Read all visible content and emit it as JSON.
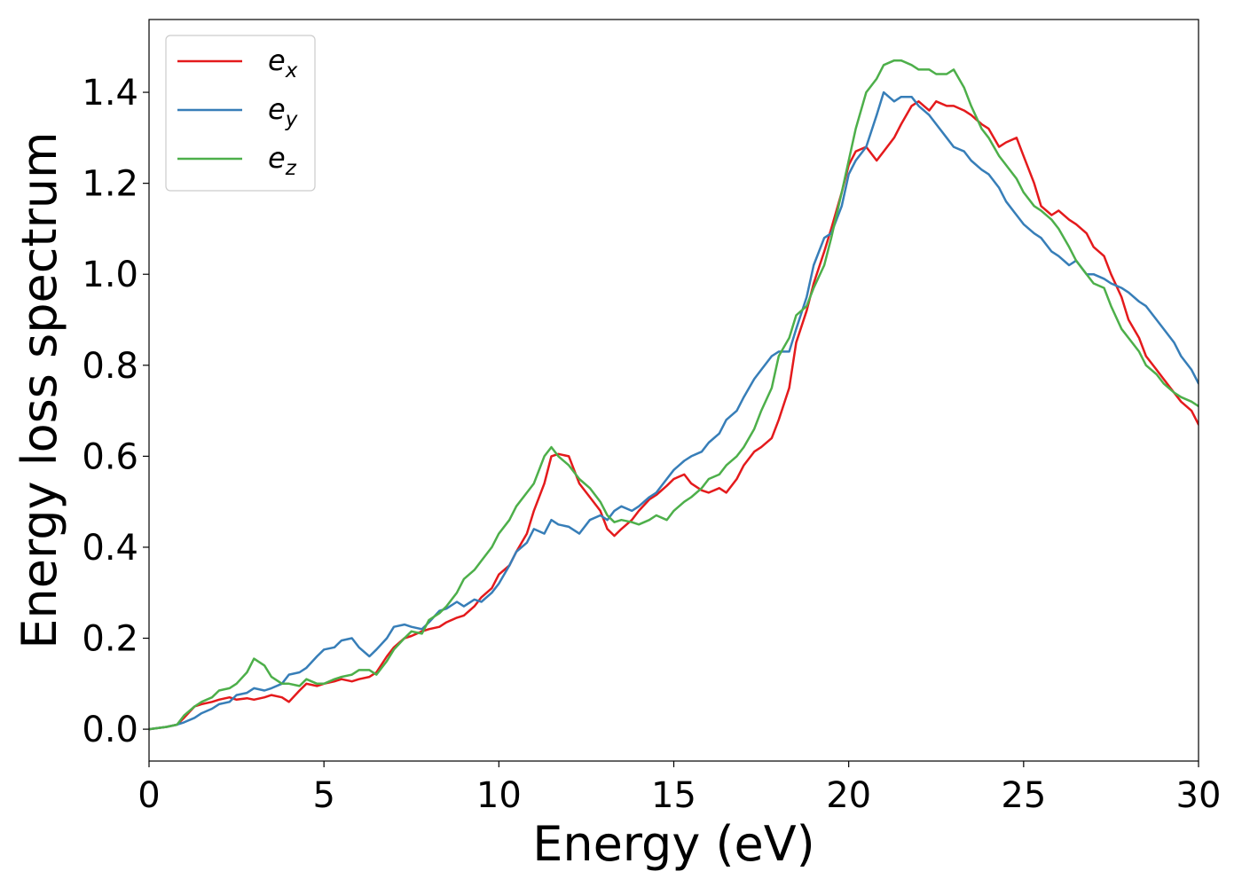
{
  "chart_data": {
    "type": "line",
    "title": "",
    "xlabel": "Energy (eV)",
    "ylabel": "Energy loss spectrum",
    "xlim": [
      0,
      30
    ],
    "ylim": [
      -0.07,
      1.56
    ],
    "xticks": [
      0,
      5,
      10,
      15,
      20,
      25,
      30
    ],
    "xtick_labels": [
      "0",
      "5",
      "10",
      "15",
      "20",
      "25",
      "30"
    ],
    "yticks": [
      0.0,
      0.2,
      0.4,
      0.6,
      0.8,
      1.0,
      1.2,
      1.4
    ],
    "ytick_labels": [
      "0.0",
      "0.2",
      "0.4",
      "0.6",
      "0.8",
      "1.0",
      "1.2",
      "1.4"
    ],
    "grid": false,
    "legend_position": "top-left",
    "series": [
      {
        "name": "e_x",
        "legend_base": "e",
        "legend_sub": "x",
        "color": "#e41a1c",
        "x": [
          0,
          0.5,
          0.8,
          1.0,
          1.3,
          1.5,
          1.8,
          2.0,
          2.3,
          2.5,
          2.8,
          3.0,
          3.3,
          3.5,
          3.8,
          4.0,
          4.3,
          4.5,
          4.8,
          5.0,
          5.3,
          5.5,
          5.8,
          6.0,
          6.3,
          6.5,
          6.8,
          7.0,
          7.3,
          7.5,
          7.8,
          8.0,
          8.3,
          8.5,
          8.8,
          9.0,
          9.3,
          9.5,
          9.8,
          10.0,
          10.3,
          10.5,
          10.8,
          11.0,
          11.3,
          11.5,
          11.7,
          12.0,
          12.3,
          12.6,
          12.9,
          13.1,
          13.3,
          13.5,
          13.8,
          14.0,
          14.3,
          14.5,
          14.8,
          15.0,
          15.3,
          15.5,
          15.8,
          16.0,
          16.3,
          16.5,
          16.8,
          17.0,
          17.3,
          17.5,
          17.8,
          18.0,
          18.3,
          18.5,
          18.8,
          19.0,
          19.3,
          19.5,
          19.8,
          20.0,
          20.2,
          20.5,
          20.8,
          21.0,
          21.3,
          21.5,
          21.8,
          22.0,
          22.3,
          22.5,
          22.8,
          23.0,
          23.3,
          23.5,
          23.8,
          24.0,
          24.3,
          24.5,
          24.8,
          25.0,
          25.3,
          25.5,
          25.8,
          26.0,
          26.3,
          26.5,
          26.8,
          27.0,
          27.3,
          27.5,
          27.8,
          28.0,
          28.3,
          28.5,
          28.8,
          29.0,
          29.3,
          29.5,
          29.8,
          30.0
        ],
        "y": [
          0.0,
          0.005,
          0.01,
          0.025,
          0.05,
          0.055,
          0.06,
          0.065,
          0.07,
          0.065,
          0.068,
          0.065,
          0.07,
          0.075,
          0.07,
          0.06,
          0.085,
          0.1,
          0.095,
          0.1,
          0.105,
          0.11,
          0.105,
          0.11,
          0.115,
          0.125,
          0.16,
          0.18,
          0.2,
          0.205,
          0.215,
          0.22,
          0.225,
          0.235,
          0.245,
          0.25,
          0.27,
          0.29,
          0.31,
          0.34,
          0.36,
          0.39,
          0.43,
          0.48,
          0.54,
          0.6,
          0.605,
          0.6,
          0.54,
          0.51,
          0.48,
          0.44,
          0.425,
          0.44,
          0.46,
          0.48,
          0.505,
          0.515,
          0.535,
          0.55,
          0.56,
          0.54,
          0.525,
          0.52,
          0.53,
          0.52,
          0.55,
          0.58,
          0.61,
          0.62,
          0.64,
          0.68,
          0.75,
          0.85,
          0.92,
          0.98,
          1.05,
          1.1,
          1.18,
          1.24,
          1.27,
          1.28,
          1.25,
          1.27,
          1.3,
          1.33,
          1.37,
          1.38,
          1.36,
          1.38,
          1.37,
          1.37,
          1.36,
          1.35,
          1.33,
          1.32,
          1.28,
          1.29,
          1.3,
          1.26,
          1.2,
          1.15,
          1.13,
          1.14,
          1.12,
          1.11,
          1.09,
          1.06,
          1.04,
          1.0,
          0.95,
          0.9,
          0.86,
          0.82,
          0.79,
          0.77,
          0.74,
          0.72,
          0.7,
          0.67
        ]
      },
      {
        "name": "e_y",
        "legend_base": "e",
        "legend_sub": "y",
        "color": "#377eb8",
        "x": [
          0,
          0.5,
          0.8,
          1.0,
          1.3,
          1.5,
          1.8,
          2.0,
          2.3,
          2.5,
          2.8,
          3.0,
          3.3,
          3.5,
          3.8,
          4.0,
          4.3,
          4.5,
          4.8,
          5.0,
          5.3,
          5.5,
          5.8,
          6.0,
          6.3,
          6.5,
          6.8,
          7.0,
          7.3,
          7.5,
          7.8,
          8.0,
          8.3,
          8.5,
          8.8,
          9.0,
          9.3,
          9.5,
          9.8,
          10.0,
          10.3,
          10.5,
          10.8,
          11.0,
          11.3,
          11.5,
          11.7,
          12.0,
          12.3,
          12.6,
          12.9,
          13.1,
          13.3,
          13.5,
          13.8,
          14.0,
          14.3,
          14.5,
          14.8,
          15.0,
          15.3,
          15.5,
          15.8,
          16.0,
          16.3,
          16.5,
          16.8,
          17.0,
          17.3,
          17.5,
          17.8,
          18.0,
          18.3,
          18.5,
          18.8,
          19.0,
          19.3,
          19.5,
          19.8,
          20.0,
          20.2,
          20.5,
          20.8,
          21.0,
          21.3,
          21.5,
          21.8,
          22.0,
          22.3,
          22.5,
          22.8,
          23.0,
          23.3,
          23.5,
          23.8,
          24.0,
          24.3,
          24.5,
          24.8,
          25.0,
          25.3,
          25.5,
          25.8,
          26.0,
          26.3,
          26.5,
          26.8,
          27.0,
          27.3,
          27.5,
          27.8,
          28.0,
          28.3,
          28.5,
          28.8,
          29.0,
          29.3,
          29.5,
          29.8,
          30.0
        ],
        "y": [
          0.0,
          0.005,
          0.01,
          0.015,
          0.025,
          0.035,
          0.045,
          0.055,
          0.06,
          0.075,
          0.08,
          0.09,
          0.085,
          0.09,
          0.1,
          0.12,
          0.125,
          0.135,
          0.16,
          0.175,
          0.18,
          0.195,
          0.2,
          0.18,
          0.16,
          0.175,
          0.2,
          0.225,
          0.23,
          0.225,
          0.22,
          0.235,
          0.26,
          0.265,
          0.28,
          0.27,
          0.285,
          0.28,
          0.3,
          0.32,
          0.36,
          0.39,
          0.41,
          0.44,
          0.43,
          0.46,
          0.45,
          0.445,
          0.43,
          0.46,
          0.47,
          0.46,
          0.48,
          0.49,
          0.48,
          0.49,
          0.51,
          0.52,
          0.55,
          0.57,
          0.59,
          0.6,
          0.61,
          0.63,
          0.65,
          0.68,
          0.7,
          0.73,
          0.77,
          0.79,
          0.82,
          0.83,
          0.83,
          0.88,
          0.95,
          1.02,
          1.08,
          1.09,
          1.15,
          1.22,
          1.25,
          1.28,
          1.35,
          1.4,
          1.38,
          1.39,
          1.39,
          1.37,
          1.35,
          1.33,
          1.3,
          1.28,
          1.27,
          1.25,
          1.23,
          1.22,
          1.19,
          1.16,
          1.13,
          1.11,
          1.09,
          1.08,
          1.05,
          1.04,
          1.02,
          1.03,
          1.0,
          1.0,
          0.99,
          0.98,
          0.97,
          0.96,
          0.94,
          0.93,
          0.9,
          0.88,
          0.85,
          0.82,
          0.79,
          0.76
        ]
      },
      {
        "name": "e_z",
        "legend_base": "e",
        "legend_sub": "z",
        "color": "#4daf4a",
        "x": [
          0,
          0.5,
          0.8,
          1.0,
          1.3,
          1.5,
          1.8,
          2.0,
          2.3,
          2.5,
          2.8,
          3.0,
          3.3,
          3.5,
          3.8,
          4.0,
          4.3,
          4.5,
          4.8,
          5.0,
          5.3,
          5.5,
          5.8,
          6.0,
          6.3,
          6.5,
          6.8,
          7.0,
          7.3,
          7.5,
          7.8,
          8.0,
          8.3,
          8.5,
          8.8,
          9.0,
          9.3,
          9.5,
          9.8,
          10.0,
          10.3,
          10.5,
          10.8,
          11.0,
          11.3,
          11.5,
          11.7,
          12.0,
          12.3,
          12.6,
          12.9,
          13.1,
          13.3,
          13.5,
          13.8,
          14.0,
          14.3,
          14.5,
          14.8,
          15.0,
          15.3,
          15.5,
          15.8,
          16.0,
          16.3,
          16.5,
          16.8,
          17.0,
          17.3,
          17.5,
          17.8,
          18.0,
          18.3,
          18.5,
          18.8,
          19.0,
          19.3,
          19.5,
          19.8,
          20.0,
          20.2,
          20.5,
          20.8,
          21.0,
          21.3,
          21.5,
          21.8,
          22.0,
          22.3,
          22.5,
          22.8,
          23.0,
          23.3,
          23.5,
          23.8,
          24.0,
          24.3,
          24.5,
          24.8,
          25.0,
          25.3,
          25.5,
          25.8,
          26.0,
          26.3,
          26.5,
          26.8,
          27.0,
          27.3,
          27.5,
          27.8,
          28.0,
          28.3,
          28.5,
          28.8,
          29.0,
          29.3,
          29.5,
          29.8,
          30.0
        ],
        "y": [
          0.0,
          0.005,
          0.01,
          0.03,
          0.05,
          0.06,
          0.07,
          0.085,
          0.09,
          0.1,
          0.125,
          0.155,
          0.14,
          0.115,
          0.1,
          0.1,
          0.095,
          0.11,
          0.1,
          0.1,
          0.11,
          0.115,
          0.12,
          0.13,
          0.13,
          0.12,
          0.15,
          0.175,
          0.2,
          0.215,
          0.21,
          0.24,
          0.255,
          0.27,
          0.3,
          0.33,
          0.35,
          0.37,
          0.4,
          0.43,
          0.46,
          0.49,
          0.52,
          0.54,
          0.6,
          0.62,
          0.6,
          0.58,
          0.55,
          0.53,
          0.5,
          0.47,
          0.455,
          0.46,
          0.455,
          0.45,
          0.46,
          0.47,
          0.46,
          0.48,
          0.5,
          0.51,
          0.53,
          0.55,
          0.56,
          0.58,
          0.6,
          0.62,
          0.66,
          0.7,
          0.75,
          0.82,
          0.86,
          0.91,
          0.93,
          0.97,
          1.02,
          1.08,
          1.18,
          1.25,
          1.32,
          1.4,
          1.43,
          1.46,
          1.47,
          1.47,
          1.46,
          1.45,
          1.45,
          1.44,
          1.44,
          1.45,
          1.41,
          1.37,
          1.32,
          1.3,
          1.26,
          1.24,
          1.21,
          1.18,
          1.15,
          1.14,
          1.12,
          1.1,
          1.06,
          1.03,
          1.0,
          0.98,
          0.97,
          0.93,
          0.88,
          0.86,
          0.83,
          0.8,
          0.78,
          0.76,
          0.74,
          0.73,
          0.72,
          0.71
        ]
      }
    ]
  }
}
